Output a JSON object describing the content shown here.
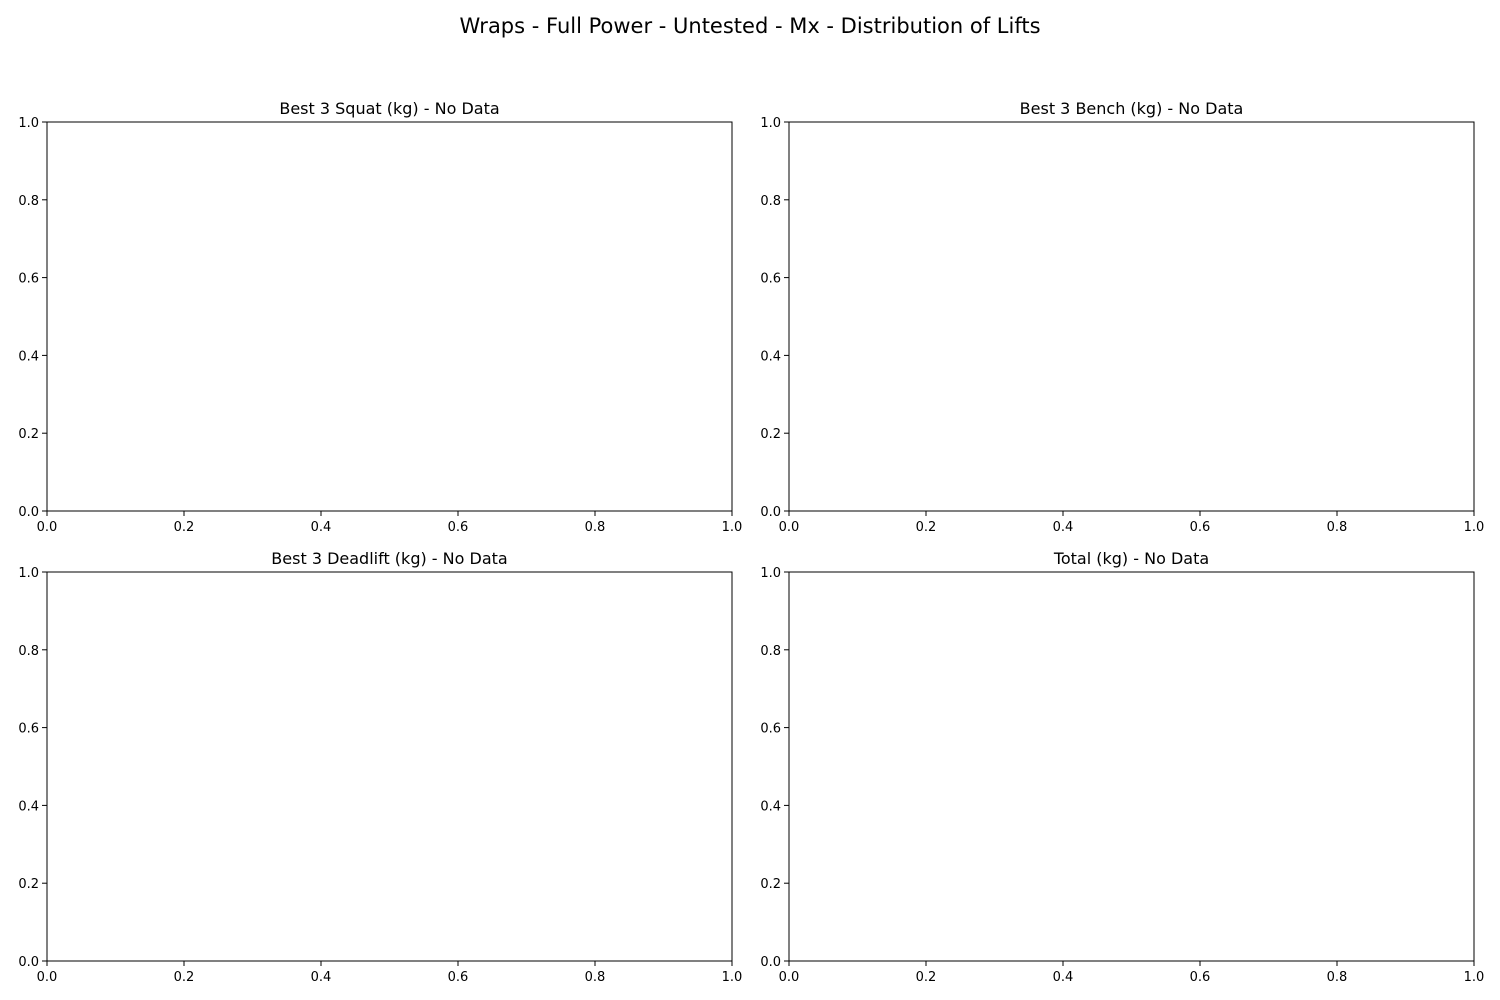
{
  "figure": {
    "title": "Wraps - Full Power - Untested - Mx - Distribution of Lifts"
  },
  "chart_data": [
    {
      "type": "bar",
      "title": "Best 3 Squat (kg) - No Data",
      "xlim": [
        0.0,
        1.0
      ],
      "ylim": [
        0.0,
        1.0
      ],
      "xticks": [
        "0.0",
        "0.2",
        "0.4",
        "0.6",
        "0.8",
        "1.0"
      ],
      "yticks": [
        "0.0",
        "0.2",
        "0.4",
        "0.6",
        "0.8",
        "1.0"
      ],
      "values": [],
      "grid": false
    },
    {
      "type": "bar",
      "title": "Best 3 Bench (kg) - No Data",
      "xlim": [
        0.0,
        1.0
      ],
      "ylim": [
        0.0,
        1.0
      ],
      "xticks": [
        "0.0",
        "0.2",
        "0.4",
        "0.6",
        "0.8",
        "1.0"
      ],
      "yticks": [
        "0.0",
        "0.2",
        "0.4",
        "0.6",
        "0.8",
        "1.0"
      ],
      "values": [],
      "grid": false
    },
    {
      "type": "bar",
      "title": "Best 3 Deadlift (kg) - No Data",
      "xlim": [
        0.0,
        1.0
      ],
      "ylim": [
        0.0,
        1.0
      ],
      "xticks": [
        "0.0",
        "0.2",
        "0.4",
        "0.6",
        "0.8",
        "1.0"
      ],
      "yticks": [
        "0.0",
        "0.2",
        "0.4",
        "0.6",
        "0.8",
        "1.0"
      ],
      "values": [],
      "grid": false
    },
    {
      "type": "bar",
      "title": "Total (kg) - No Data",
      "xlim": [
        0.0,
        1.0
      ],
      "ylim": [
        0.0,
        1.0
      ],
      "xticks": [
        "0.0",
        "0.2",
        "0.4",
        "0.6",
        "0.8",
        "1.0"
      ],
      "yticks": [
        "0.0",
        "0.2",
        "0.4",
        "0.6",
        "0.8",
        "1.0"
      ],
      "values": [],
      "grid": false
    }
  ]
}
